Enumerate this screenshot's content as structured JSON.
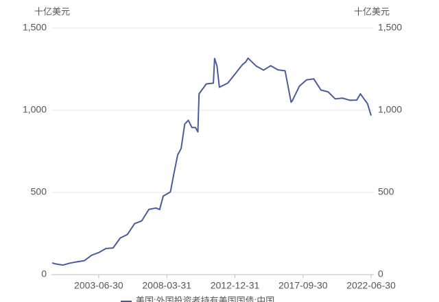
{
  "chart_data": {
    "type": "line",
    "y_unit": "十亿美元",
    "y2_unit": "十亿美元",
    "x": [
      "2000-03-31",
      "2000-06-30",
      "2000-12-31",
      "2001-06-30",
      "2001-12-31",
      "2002-06-30",
      "2002-12-31",
      "2003-06-30",
      "2003-12-31",
      "2004-06-30",
      "2004-12-31",
      "2005-06-30",
      "2005-12-31",
      "2006-06-30",
      "2006-12-31",
      "2007-06-30",
      "2007-09-30",
      "2007-12-31",
      "2008-03-31",
      "2008-06-30",
      "2008-09-30",
      "2008-12-31",
      "2009-03-31",
      "2009-06-30",
      "2009-09-30",
      "2009-12-31",
      "2010-03-31",
      "2010-05-31",
      "2010-06-30",
      "2010-12-31",
      "2011-06-30",
      "2011-07-31",
      "2011-09-30",
      "2011-11-30",
      "2012-06-30",
      "2012-12-31",
      "2013-06-30",
      "2013-09-30",
      "2013-11-30",
      "2014-06-30",
      "2014-12-31",
      "2015-06-30",
      "2015-12-31",
      "2016-06-30",
      "2016-11-30",
      "2016-12-31",
      "2017-06-30",
      "2017-12-31",
      "2018-06-30",
      "2018-12-31",
      "2019-06-30",
      "2019-12-31",
      "2020-06-30",
      "2020-12-31",
      "2021-06-30",
      "2021-09-30",
      "2021-12-31",
      "2022-03-31",
      "2022-06-30"
    ],
    "series": [
      {
        "name": "美国:外国投资者持有美国国债:中国",
        "color": "#4a5a9c",
        "values": [
          71,
          65,
          58,
          70,
          78,
          85,
          118,
          134,
          159,
          162,
          223,
          244,
          310,
          327,
          397,
          405,
          396,
          478,
          490,
          503,
          618,
          727,
          768,
          916,
          939,
          895,
          895,
          868,
          1100,
          1160,
          1165,
          1315,
          1270,
          1140,
          1165,
          1220,
          1275,
          1294,
          1317,
          1268,
          1244,
          1271,
          1246,
          1240,
          1049,
          1058,
          1147,
          1185,
          1191,
          1123,
          1112,
          1069,
          1074,
          1061,
          1062,
          1100,
          1069,
          1040,
          968
        ]
      }
    ],
    "xlim": [
      "2000-03-31",
      "2022-06-30"
    ],
    "xticks": [
      "2003-06-30",
      "2008-03-31",
      "2012-12-31",
      "2017-09-30",
      "2022-06-30"
    ],
    "ylim": [
      0,
      1500
    ],
    "yticks": [
      0,
      500,
      {
        "value": 1000,
        "label": "1,000"
      },
      {
        "value": 1500,
        "label": "1,500"
      }
    ],
    "y2lim": [
      0,
      1500
    ],
    "y2ticks": [
      0,
      500,
      {
        "value": 1000,
        "label": "1,000"
      },
      {
        "value": 1500,
        "label": "1,500"
      }
    ],
    "grid": true
  }
}
